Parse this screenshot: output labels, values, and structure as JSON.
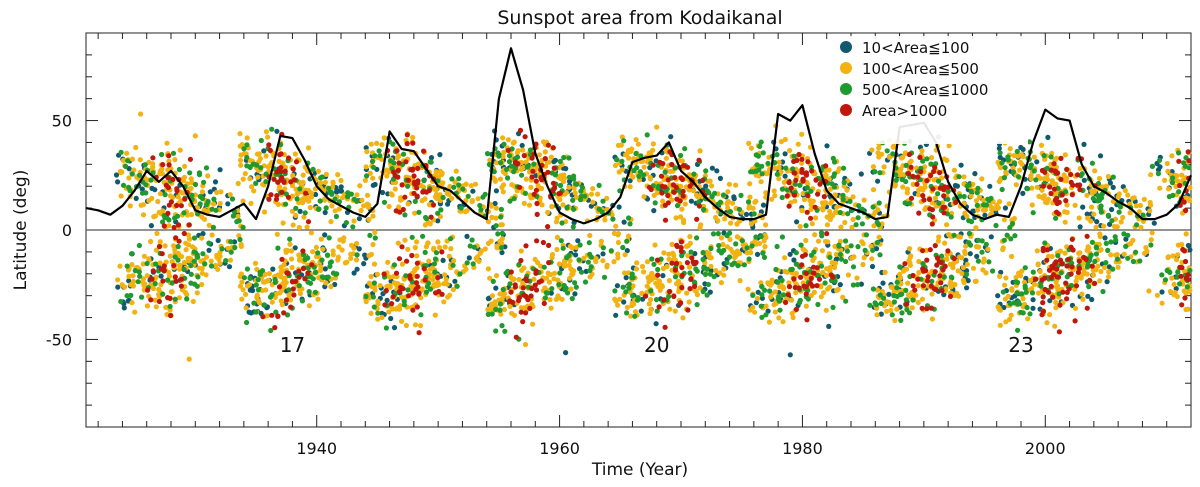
{
  "chart_data": {
    "type": "scatter",
    "title": "Sunspot area from Kodaikanal",
    "xlabel": "Time (Year)",
    "ylabel": "Latitude (deg)",
    "xlim": [
      1921,
      2012
    ],
    "ylim": [
      -90,
      90
    ],
    "x_ticks": [
      "1940",
      "1960",
      "1980",
      "2000"
    ],
    "x_tick_values": [
      1940,
      1960,
      1980,
      2000
    ],
    "y_ticks": [
      "-50",
      "0",
      "50"
    ],
    "y_tick_values": [
      -50,
      0,
      50
    ],
    "zero_line": 0,
    "legend": {
      "position": "top-right",
      "entries": [
        {
          "label": "10<Area≦100",
          "color": "#0f5a6e"
        },
        {
          "label": "100<Area≦500",
          "color": "#f2b312"
        },
        {
          "label": "500<Area≦1000",
          "color": "#1f9a2e"
        },
        {
          "label": "Area>1000",
          "color": "#c0170c"
        }
      ]
    },
    "cycle_labels": [
      {
        "text": "17",
        "year": 1938,
        "lat": -52
      },
      {
        "text": "20",
        "year": 1968,
        "lat": -52
      },
      {
        "text": "23",
        "year": 1998,
        "lat": -52
      }
    ],
    "cycles": [
      {
        "start": 1923.5,
        "end": 1934.0,
        "lat_start": 27,
        "lat_end": 7,
        "peak": 1928
      },
      {
        "start": 1933.5,
        "end": 1945.0,
        "lat_start": 32,
        "lat_end": 7,
        "peak": 1937.5
      },
      {
        "start": 1944.0,
        "end": 1955.5,
        "lat_start": 33,
        "lat_end": 6,
        "peak": 1948
      },
      {
        "start": 1954.0,
        "end": 1966.0,
        "lat_start": 34,
        "lat_end": 6,
        "peak": 1958
      },
      {
        "start": 1964.5,
        "end": 1977.0,
        "lat_start": 32,
        "lat_end": 6,
        "peak": 1969.5
      },
      {
        "start": 1975.5,
        "end": 1987.0,
        "lat_start": 33,
        "lat_end": 6,
        "peak": 1980.5
      },
      {
        "start": 1985.5,
        "end": 1997.5,
        "lat_start": 33,
        "lat_end": 6,
        "peak": 1990.5
      },
      {
        "start": 1996.0,
        "end": 2009.0,
        "lat_start": 32,
        "lat_end": 6,
        "peak": 2001.5
      },
      {
        "start": 2008.5,
        "end": 2012.0,
        "lat_start": 28,
        "lat_end": 20,
        "peak": 2011.5
      }
    ],
    "envelope_series": {
      "name": "max latitude envelope",
      "color": "#000000",
      "x": [
        1921,
        1922,
        1923,
        1924,
        1925,
        1926,
        1927,
        1928,
        1929,
        1930,
        1931,
        1932,
        1933,
        1934,
        1935,
        1936,
        1937,
        1938,
        1939,
        1940,
        1941,
        1942,
        1943,
        1944,
        1945,
        1946,
        1947,
        1948,
        1949,
        1950,
        1951,
        1952,
        1953,
        1954,
        1955,
        1956,
        1957,
        1958,
        1959,
        1960,
        1961,
        1962,
        1963,
        1964,
        1965,
        1966,
        1967,
        1968,
        1969,
        1970,
        1971,
        1972,
        1973,
        1974,
        1975,
        1976,
        1977,
        1978,
        1979,
        1980,
        1981,
        1982,
        1983,
        1984,
        1985,
        1986,
        1987,
        1988,
        1989,
        1990,
        1991,
        1992,
        1993,
        1994,
        1995,
        1996,
        1997,
        1998,
        1999,
        2000,
        2001,
        2002,
        2003,
        2004,
        2005,
        2006,
        2007,
        2008,
        2009,
        2010,
        2011,
        2012
      ],
      "y": [
        10,
        9,
        7,
        11,
        18,
        27,
        22,
        27,
        20,
        9,
        7,
        6,
        9,
        12,
        5,
        20,
        43,
        42,
        32,
        20,
        14,
        11,
        8,
        6,
        12,
        45,
        37,
        36,
        28,
        20,
        18,
        13,
        8,
        5,
        60,
        83,
        64,
        35,
        20,
        8,
        5,
        3,
        5,
        8,
        15,
        31,
        33,
        34,
        40,
        27,
        22,
        15,
        10,
        6,
        5,
        5,
        7,
        53,
        50,
        57,
        35,
        18,
        12,
        10,
        8,
        5,
        6,
        47,
        48,
        49,
        40,
        22,
        12,
        7,
        5,
        7,
        6,
        20,
        40,
        55,
        51,
        50,
        30,
        20,
        17,
        13,
        10,
        5,
        5,
        7,
        12,
        25
      ]
    }
  }
}
